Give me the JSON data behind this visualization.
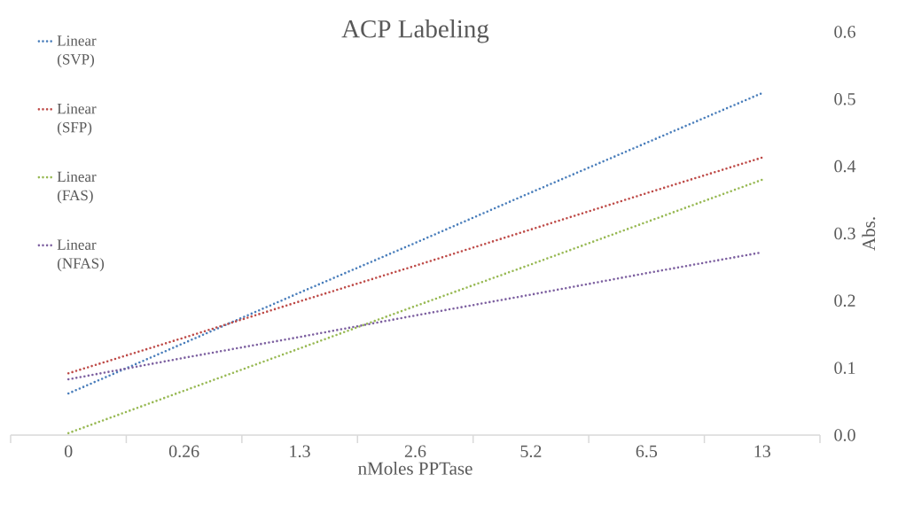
{
  "chart_data": {
    "type": "line",
    "title": "ACP Labeling",
    "xlabel": "nMoles PPTase",
    "ylabel": "Abs.",
    "categories": [
      "0",
      "0.26",
      "1.3",
      "2.6",
      "5.2",
      "6.5",
      "13"
    ],
    "series": [
      {
        "name": "Linear (SVP)",
        "color": "#4a7ebb",
        "values": [
          0.062,
          0.137,
          0.212,
          0.286,
          0.361,
          0.435,
          0.509
        ]
      },
      {
        "name": "Linear (SFP)",
        "color": "#be4b48",
        "values": [
          0.092,
          0.145,
          0.199,
          0.252,
          0.306,
          0.36,
          0.413
        ]
      },
      {
        "name": "Linear (FAS)",
        "color": "#98b954",
        "values": [
          0.003,
          0.066,
          0.129,
          0.192,
          0.254,
          0.317,
          0.38
        ]
      },
      {
        "name": "Linear (NFAS)",
        "color": "#7d60a0",
        "values": [
          0.083,
          0.115,
          0.146,
          0.178,
          0.209,
          0.241,
          0.272
        ]
      }
    ],
    "ylim": [
      0,
      0.6
    ],
    "yticks": [
      {
        "value": 0,
        "label": "0.0"
      },
      0.1,
      0.2,
      0.3,
      0.4,
      0.5,
      0.6
    ],
    "legend": "top left",
    "line_style": "dotted",
    "marker": "none"
  }
}
